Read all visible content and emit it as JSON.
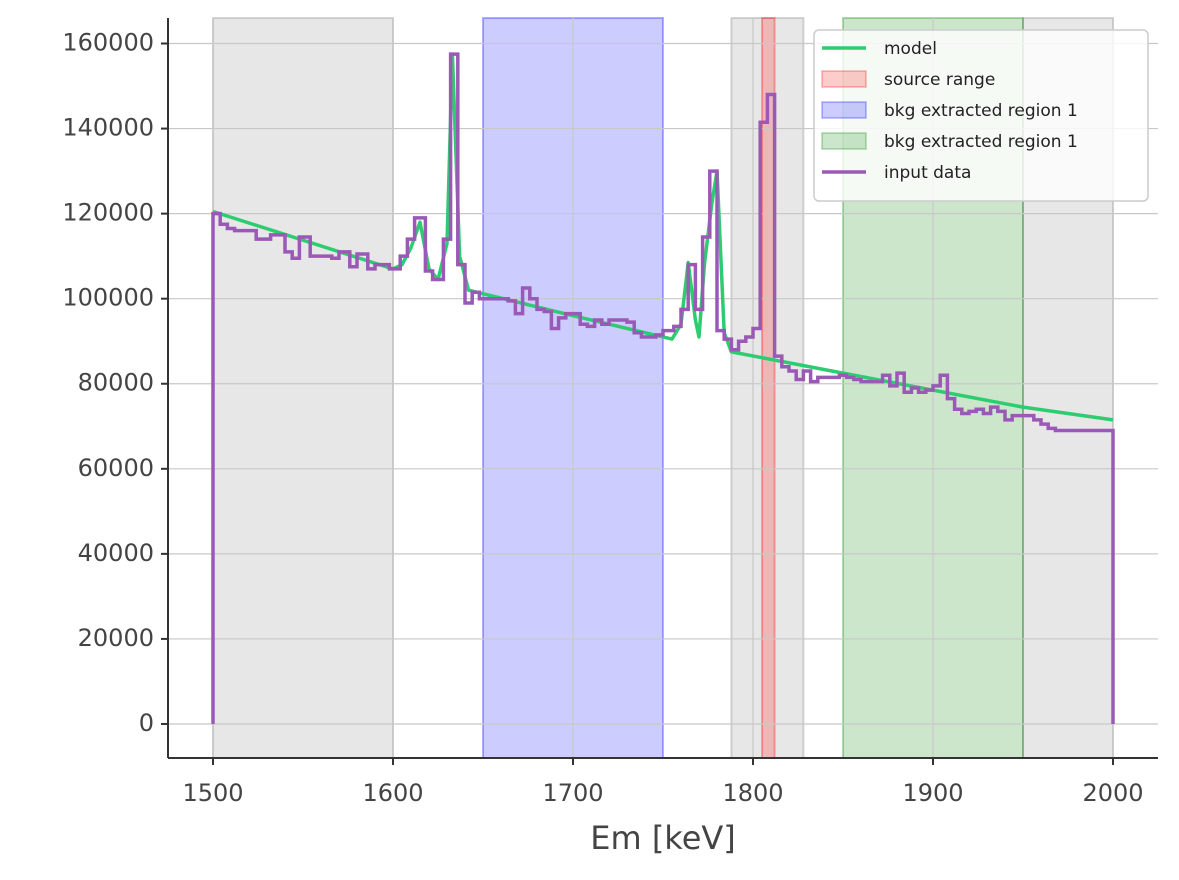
{
  "chart_data": {
    "type": "line",
    "x_label": "Em [keV]",
    "xlim": [
      1475,
      2025
    ],
    "ylim": [
      -8000,
      166000
    ],
    "xticks": [
      1500,
      1600,
      1700,
      1800,
      1900,
      2000
    ],
    "yticks": [
      0,
      20000,
      40000,
      60000,
      80000,
      100000,
      120000,
      140000,
      160000
    ],
    "grid": true,
    "legend": "upper right",
    "excluded_color": "#999999",
    "excluded_ranges": [
      [
        1500,
        1600
      ],
      [
        1788,
        1828
      ],
      [
        1950,
        2000
      ]
    ],
    "regions": [
      {
        "name": "source range",
        "color": "#ff0000",
        "alpha": 0.2,
        "range": [
          1805,
          1812
        ]
      },
      {
        "name": "bkg extracted region 1",
        "color": "#0000ff",
        "alpha": 0.2,
        "range": [
          1650,
          1750
        ]
      },
      {
        "name": "bkg extracted region 1",
        "color": "#008000",
        "alpha": 0.2,
        "range": [
          1850,
          1950
        ]
      }
    ],
    "series": [
      {
        "name": "model",
        "type": "line",
        "color": "#2ecc71",
        "x": [
          1500,
          1600,
          1605,
          1610,
          1615,
          1620,
          1625,
          1630,
          1633,
          1637,
          1642,
          1700,
          1755,
          1760,
          1764,
          1768,
          1770,
          1773,
          1777,
          1780,
          1784,
          1788,
          1850,
          1950,
          2000
        ],
        "values": [
          120500,
          107000,
          108000,
          112000,
          118000,
          107000,
          104500,
          113000,
          157500,
          110000,
          102000,
          96000,
          90500,
          94000,
          108500,
          95000,
          91000,
          108000,
          122000,
          130000,
          92000,
          87500,
          82500,
          74500,
          71500
        ]
      },
      {
        "name": "input data",
        "type": "histogram",
        "color": "#9b59b6",
        "bins": [
          1500,
          1504,
          1508,
          1512,
          1524,
          1532,
          1540,
          1544,
          1548,
          1554,
          1566,
          1570,
          1576,
          1580,
          1586,
          1590,
          1598,
          1604,
          1608,
          1612,
          1618,
          1622,
          1628,
          1632,
          1636,
          1640,
          1644,
          1648,
          1664,
          1668,
          1672,
          1676,
          1680,
          1684,
          1688,
          1692,
          1696,
          1704,
          1708,
          1712,
          1716,
          1720,
          1730,
          1734,
          1738,
          1746,
          1750,
          1756,
          1760,
          1764,
          1768,
          1772,
          1776,
          1780,
          1784,
          1788,
          1792,
          1796,
          1800,
          1804,
          1808,
          1812,
          1816,
          1820,
          1824,
          1828,
          1832,
          1836,
          1840,
          1848,
          1852,
          1856,
          1860,
          1868,
          1872,
          1876,
          1880,
          1884,
          1888,
          1892,
          1896,
          1900,
          1904,
          1908,
          1912,
          1916,
          1920,
          1924,
          1928,
          1932,
          1936,
          1940,
          1944,
          1956,
          1960,
          1964,
          1968,
          2000
        ],
        "values": [
          120000,
          117500,
          116500,
          116000,
          114000,
          115000,
          111000,
          109500,
          114500,
          110000,
          109500,
          111000,
          107500,
          110500,
          107000,
          108000,
          107000,
          110000,
          114000,
          119000,
          106500,
          104500,
          114000,
          157500,
          108000,
          99000,
          101500,
          100000,
          99500,
          96500,
          102500,
          100000,
          97500,
          97000,
          93000,
          95500,
          96500,
          94000,
          93500,
          95000,
          94000,
          95000,
          94500,
          92000,
          91000,
          91500,
          92500,
          93500,
          97500,
          108000,
          97500,
          114500,
          130000,
          92500,
          90500,
          88000,
          90000,
          91000,
          93000,
          141500,
          148000,
          86500,
          84000,
          83000,
          81000,
          83000,
          80500,
          81500,
          81500,
          82000,
          81500,
          81000,
          80500,
          80500,
          82000,
          79500,
          82500,
          78000,
          79000,
          78000,
          78500,
          79500,
          82000,
          76500,
          74000,
          73000,
          73500,
          74000,
          73000,
          74500,
          73500,
          71500,
          72500,
          71500,
          70500,
          69500,
          69000
        ]
      }
    ]
  }
}
